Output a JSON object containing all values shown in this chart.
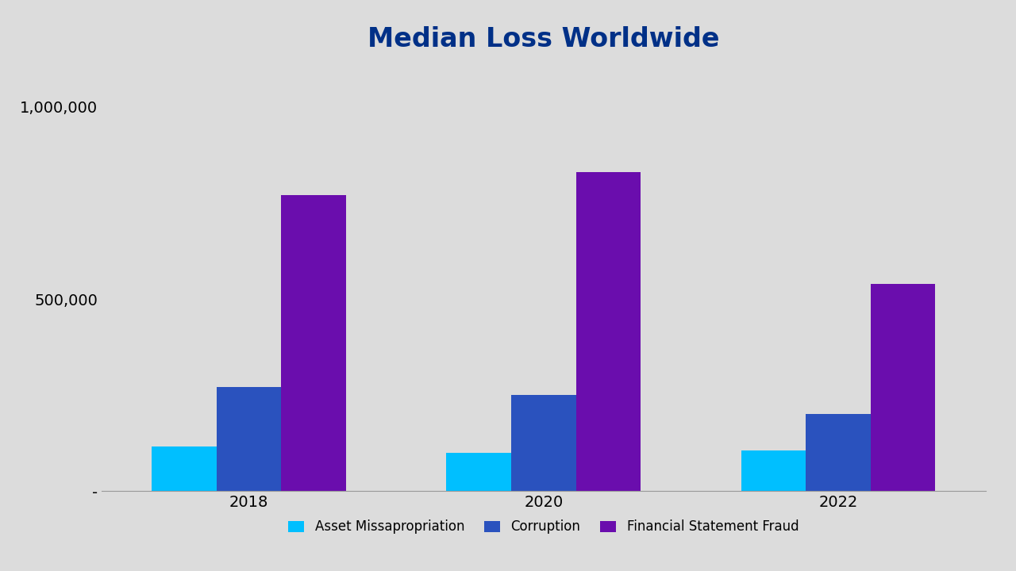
{
  "title": "Median Loss Worldwide",
  "title_color": "#003087",
  "title_fontsize": 24,
  "title_fontweight": "bold",
  "background_color": "#dcdcdc",
  "categories": [
    "2018",
    "2020",
    "2022"
  ],
  "series": [
    {
      "name": "Asset Missapropriation",
      "values": [
        115000,
        100000,
        105000
      ],
      "color": "#00bfff"
    },
    {
      "name": "Corruption",
      "values": [
        270000,
        250000,
        200000
      ],
      "color": "#2a52be"
    },
    {
      "name": "Financial Statement Fraud",
      "values": [
        770000,
        830000,
        540000
      ],
      "color": "#6a0dad"
    }
  ],
  "ylim": [
    0,
    1100000
  ],
  "yticks": [
    0,
    500000,
    1000000
  ],
  "ytick_labels": [
    "-",
    "500,000",
    "1,000,000"
  ],
  "bar_width": 0.22,
  "legend_ncol": 3,
  "legend_fontsize": 12,
  "tick_fontsize": 14,
  "xlabel_fontsize": 14
}
